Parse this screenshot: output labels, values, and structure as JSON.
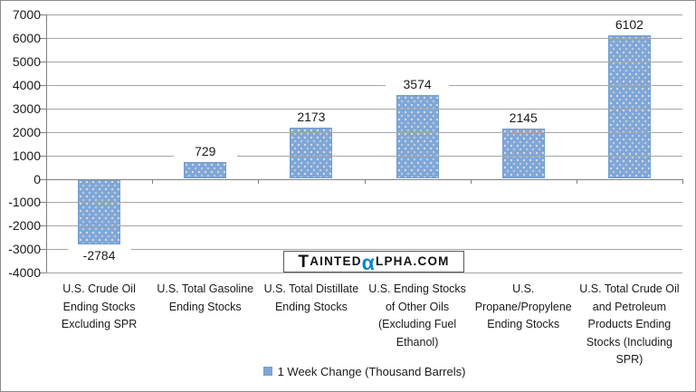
{
  "chart_data": {
    "type": "bar",
    "title": "",
    "categories": [
      "U.S. Crude Oil Ending Stocks Excluding SPR",
      "U.S. Total Gasoline Ending Stocks",
      "U.S. Total Distillate Ending Stocks",
      "U.S. Ending Stocks of Other Oils (Excluding Fuel Ethanol)",
      "U.S. Propane/Propylene Ending Stocks",
      "U.S. Total Crude Oil and Petroleum Products Ending Stocks (Including SPR)"
    ],
    "series": [
      {
        "name": "1 Week Change (Thousand Barrels)",
        "values": [
          -2784,
          729,
          2173,
          3574,
          2145,
          6102
        ]
      }
    ],
    "data_labels": [
      "-2784",
      "729",
      "2173",
      "3574",
      "2145",
      "6102"
    ],
    "xlabel": "",
    "ylabel": "",
    "ylim": [
      -4000,
      7000
    ],
    "yticks": [
      7000,
      6000,
      5000,
      4000,
      3000,
      2000,
      1000,
      0,
      -1000,
      -2000,
      -3000,
      -4000
    ],
    "grid": true,
    "legend_position": "bottom"
  },
  "legend": {
    "label": "1 Week Change (Thousand Barrels)"
  },
  "watermark": {
    "text": "TaintedAlpha.com",
    "seg1": "T",
    "seg2": "AINTED",
    "alpha": "α",
    "seg3": "LPHA.COM",
    "alpha_color": "#0d86d0"
  },
  "colors": {
    "bar_fill": "#7ea6d8",
    "bar_border": "#729dcf",
    "gridline": "#a6a6a6",
    "axis": "#808080",
    "text": "#1a1a1a",
    "background": "#ffffff",
    "frame_border": "#8c8c8c"
  }
}
